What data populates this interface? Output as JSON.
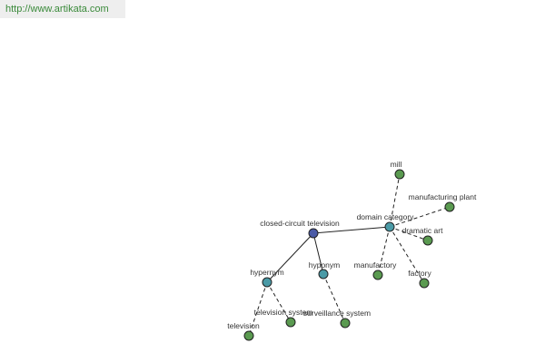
{
  "header": {
    "url": "http://www.artikata.com"
  },
  "nodes": [
    {
      "label": "closed-circuit television"
    },
    {
      "label": "domain category"
    },
    {
      "label": "hypernym"
    },
    {
      "label": "hyponym"
    },
    {
      "label": "mill"
    },
    {
      "label": "manufacturing plant"
    },
    {
      "label": "dramatic art"
    },
    {
      "label": "manufactory"
    },
    {
      "label": "factory"
    },
    {
      "label": "television system"
    },
    {
      "label": "surveillance system"
    },
    {
      "label": "television"
    }
  ]
}
